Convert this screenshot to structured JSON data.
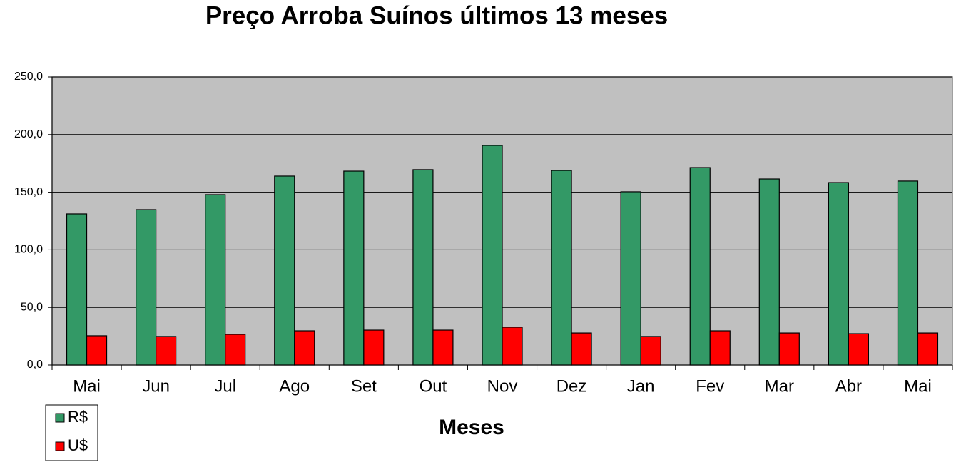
{
  "chart_data": {
    "type": "bar",
    "title": "Preço Arroba Suínos últimos 13 meses",
    "x_label": "Meses",
    "categories": [
      "Mai",
      "Jun",
      "Jul",
      "Ago",
      "Set",
      "Out",
      "Nov",
      "Dez",
      "Jan",
      "Fev",
      "Mar",
      "Abr",
      "Mai"
    ],
    "series": [
      {
        "name": "R$",
        "color": "#339966",
        "values": [
          131.2,
          134.9,
          147.9,
          164.0,
          168.3,
          169.6,
          190.6,
          168.9,
          150.4,
          171.4,
          161.5,
          158.4,
          159.7
        ]
      },
      {
        "name": "U$",
        "color": "#ff0000",
        "values": [
          25.4,
          24.8,
          26.6,
          29.7,
          30.3,
          30.3,
          32.8,
          27.8,
          24.8,
          29.7,
          27.8,
          27.2,
          27.8
        ]
      }
    ],
    "ylim": [
      0,
      250
    ],
    "yticks": [
      {
        "value": 0,
        "label": "0,0"
      },
      {
        "value": 50,
        "label": "50,0"
      },
      {
        "value": 100,
        "label": "100,0"
      },
      {
        "value": 150,
        "label": "150,0"
      },
      {
        "value": 200,
        "label": "200,0"
      },
      {
        "value": 250,
        "label": "250,0"
      }
    ],
    "grid": true,
    "legend": "bottom-left",
    "plot_background": "#c0c0c0"
  }
}
